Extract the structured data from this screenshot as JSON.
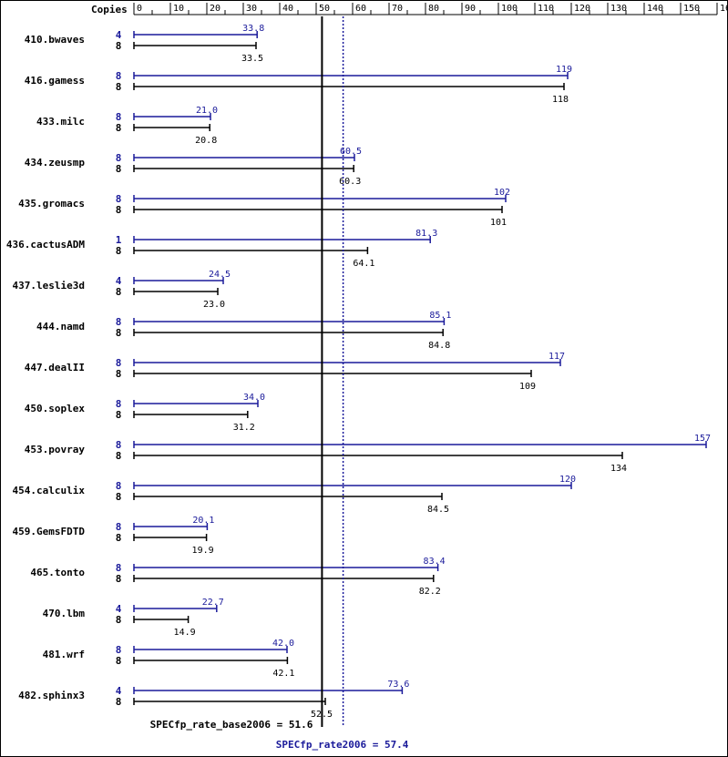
{
  "chart_data": {
    "type": "bar",
    "orientation": "horizontal",
    "copies_header": "Copies",
    "xlim": [
      0,
      160
    ],
    "ticks": [
      0,
      10,
      20,
      30,
      40,
      50,
      60,
      70,
      80,
      90,
      100,
      110,
      120,
      130,
      140,
      150,
      160
    ],
    "colors": {
      "peak": "#1a1a9a",
      "base": "#000000"
    },
    "series": [
      {
        "name": "SPECfp_rate2006",
        "key": "peak"
      },
      {
        "name": "SPECfp_rate_base2006",
        "key": "base"
      }
    ],
    "benchmarks": [
      {
        "name": "410.bwaves",
        "peak_copies": "4",
        "peak": 33.8,
        "peak_label": "33.8",
        "base_copies": "8",
        "base": 33.5,
        "base_label": "33.5"
      },
      {
        "name": "416.gamess",
        "peak_copies": "8",
        "peak": 119,
        "peak_label": "119",
        "base_copies": "8",
        "base": 118,
        "base_label": "118"
      },
      {
        "name": "433.milc",
        "peak_copies": "8",
        "peak": 21.0,
        "peak_label": "21.0",
        "base_copies": "8",
        "base": 20.8,
        "base_label": "20.8"
      },
      {
        "name": "434.zeusmp",
        "peak_copies": "8",
        "peak": 60.5,
        "peak_label": "60.5",
        "base_copies": "8",
        "base": 60.3,
        "base_label": "60.3"
      },
      {
        "name": "435.gromacs",
        "peak_copies": "8",
        "peak": 102,
        "peak_label": "102",
        "base_copies": "8",
        "base": 101,
        "base_label": "101"
      },
      {
        "name": "436.cactusADM",
        "peak_copies": "1",
        "peak": 81.3,
        "peak_label": "81.3",
        "base_copies": "8",
        "base": 64.1,
        "base_label": "64.1"
      },
      {
        "name": "437.leslie3d",
        "peak_copies": "4",
        "peak": 24.5,
        "peak_label": "24.5",
        "base_copies": "8",
        "base": 23.0,
        "base_label": "23.0"
      },
      {
        "name": "444.namd",
        "peak_copies": "8",
        "peak": 85.1,
        "peak_label": "85.1",
        "base_copies": "8",
        "base": 84.8,
        "base_label": "84.8"
      },
      {
        "name": "447.dealII",
        "peak_copies": "8",
        "peak": 117,
        "peak_label": "117",
        "base_copies": "8",
        "base": 109,
        "base_label": "109"
      },
      {
        "name": "450.soplex",
        "peak_copies": "8",
        "peak": 34.0,
        "peak_label": "34.0",
        "base_copies": "8",
        "base": 31.2,
        "base_label": "31.2"
      },
      {
        "name": "453.povray",
        "peak_copies": "8",
        "peak": 157,
        "peak_label": "157",
        "base_copies": "8",
        "base": 134,
        "base_label": "134"
      },
      {
        "name": "454.calculix",
        "peak_copies": "8",
        "peak": 120,
        "peak_label": "120",
        "base_copies": "8",
        "base": 84.5,
        "base_label": "84.5"
      },
      {
        "name": "459.GemsFDTD",
        "peak_copies": "8",
        "peak": 20.1,
        "peak_label": "20.1",
        "base_copies": "8",
        "base": 19.9,
        "base_label": "19.9"
      },
      {
        "name": "465.tonto",
        "peak_copies": "8",
        "peak": 83.4,
        "peak_label": "83.4",
        "base_copies": "8",
        "base": 82.2,
        "base_label": "82.2"
      },
      {
        "name": "470.lbm",
        "peak_copies": "4",
        "peak": 22.7,
        "peak_label": "22.7",
        "base_copies": "8",
        "base": 14.9,
        "base_label": "14.9"
      },
      {
        "name": "481.wrf",
        "peak_copies": "8",
        "peak": 42.0,
        "peak_label": "42.0",
        "base_copies": "8",
        "base": 42.1,
        "base_label": "42.1"
      },
      {
        "name": "482.sphinx3",
        "peak_copies": "4",
        "peak": 73.6,
        "peak_label": "73.6",
        "base_copies": "8",
        "base": 52.5,
        "base_label": "52.5"
      }
    ],
    "summary": {
      "base_label": "SPECfp_rate_base2006 = 51.6",
      "base_value": 51.6,
      "peak_label": "SPECfp_rate2006 = 57.4",
      "peak_value": 57.4
    }
  }
}
